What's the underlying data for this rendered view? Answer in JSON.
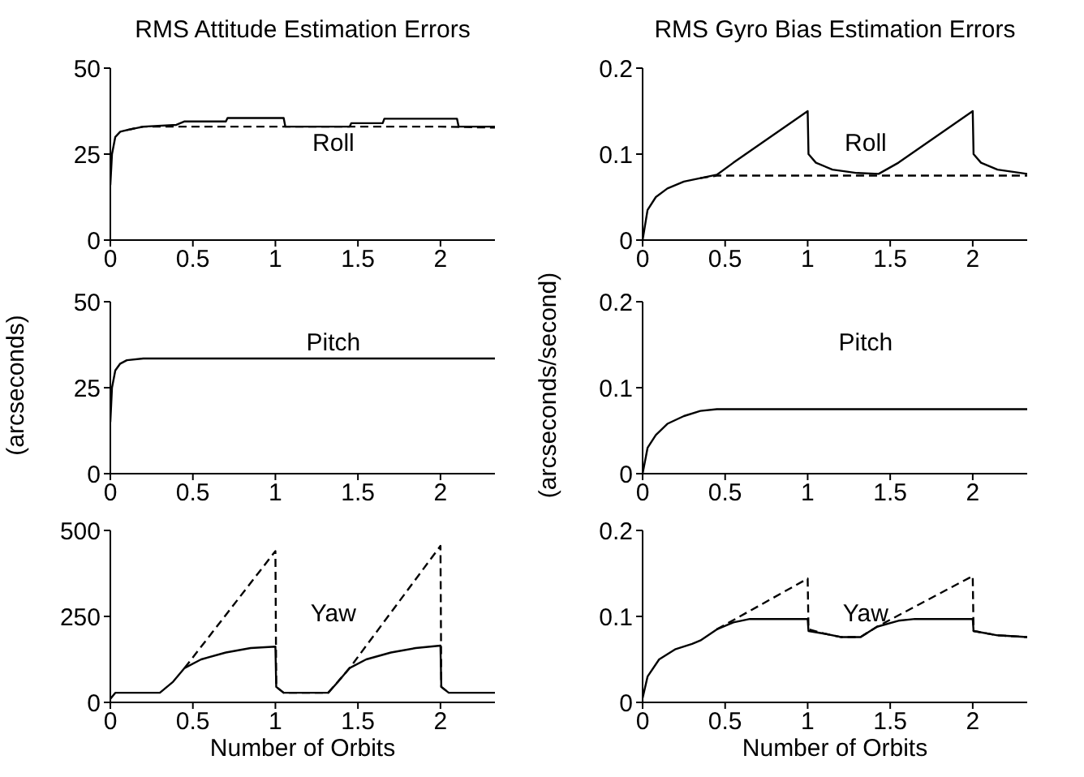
{
  "chart_data": [
    {
      "type": "line",
      "title": "RMS Attitude Estimation Errors",
      "annotations": [
        "Roll"
      ],
      "xlim": [
        0,
        2.33
      ],
      "xticks": [
        0,
        0.5,
        1,
        1.5,
        2
      ],
      "ylim": [
        0,
        50
      ],
      "yticks": [
        0,
        25,
        50
      ],
      "grid": false,
      "legend": false,
      "marker": "none",
      "series": [
        {
          "color": "#000000",
          "line_style": "solid",
          "x": [
            0,
            0.01,
            0.03,
            0.06,
            0.1,
            0.2,
            0.4,
            0.45,
            0.7,
            0.71,
            1.05,
            1.06,
            1.45,
            1.46,
            1.65,
            1.66,
            2.1,
            2.11,
            2.33
          ],
          "values": [
            16,
            25,
            30,
            31.5,
            32,
            33,
            33.5,
            34.5,
            34.5,
            35.5,
            35.5,
            33,
            33,
            34,
            34,
            35.3,
            35.3,
            33,
            33
          ]
        },
        {
          "color": "#000000",
          "line_style": "dashed",
          "x": [
            0.1,
            0.2,
            0.4,
            1,
            1.5,
            2,
            2.33
          ],
          "values": [
            32,
            33,
            33,
            33,
            33,
            33,
            32.7
          ]
        }
      ]
    },
    {
      "type": "line",
      "title": "RMS Gyro Bias Estimation Errors",
      "annotations": [
        "Roll"
      ],
      "xlim": [
        0,
        2.33
      ],
      "xticks": [
        0,
        0.5,
        1,
        1.5,
        2
      ],
      "ylim": [
        0,
        0.2
      ],
      "yticks": [
        0,
        0.1,
        0.2
      ],
      "grid": false,
      "legend": false,
      "marker": "none",
      "series": [
        {
          "color": "#000000",
          "line_style": "solid",
          "x": [
            0,
            0.03,
            0.08,
            0.15,
            0.25,
            0.35,
            0.45,
            0.55,
            1,
            1.005,
            1.05,
            1.15,
            1.3,
            1.43,
            1.55,
            2,
            2.005,
            2.05,
            2.15,
            2.33
          ],
          "values": [
            0,
            0.035,
            0.05,
            0.06,
            0.068,
            0.072,
            0.076,
            0.09,
            0.15,
            0.1,
            0.09,
            0.082,
            0.078,
            0.077,
            0.09,
            0.15,
            0.1,
            0.09,
            0.082,
            0.077
          ]
        },
        {
          "color": "#000000",
          "line_style": "dashed",
          "x": [
            0.35,
            0.45,
            1,
            1.5,
            2,
            2.33
          ],
          "values": [
            0.072,
            0.075,
            0.075,
            0.075,
            0.075,
            0.075
          ]
        }
      ]
    },
    {
      "type": "line",
      "ylabel": "(arcseconds)",
      "annotations": [
        "Pitch"
      ],
      "xlim": [
        0,
        2.33
      ],
      "xticks": [
        0,
        0.5,
        1,
        1.5,
        2
      ],
      "ylim": [
        0,
        50
      ],
      "yticks": [
        0,
        25,
        50
      ],
      "grid": false,
      "legend": false,
      "marker": "none",
      "series": [
        {
          "color": "#000000",
          "line_style": "solid",
          "x": [
            0,
            0.01,
            0.03,
            0.06,
            0.1,
            0.2,
            0.5,
            1,
            1.5,
            2,
            2.33
          ],
          "values": [
            15,
            25,
            30,
            32,
            33,
            33.5,
            33.5,
            33.5,
            33.5,
            33.5,
            33.5
          ]
        }
      ]
    },
    {
      "type": "line",
      "ylabel": "(arcseconds/second)",
      "annotations": [
        "Pitch"
      ],
      "xlim": [
        0,
        2.33
      ],
      "xticks": [
        0,
        0.5,
        1,
        1.5,
        2
      ],
      "ylim": [
        0,
        0.2
      ],
      "yticks": [
        0,
        0.1,
        0.2
      ],
      "grid": false,
      "legend": false,
      "marker": "none",
      "series": [
        {
          "color": "#000000",
          "line_style": "solid",
          "x": [
            0,
            0.03,
            0.08,
            0.15,
            0.25,
            0.35,
            0.45,
            1,
            1.5,
            2,
            2.33
          ],
          "values": [
            0,
            0.03,
            0.045,
            0.058,
            0.067,
            0.073,
            0.075,
            0.075,
            0.075,
            0.075,
            0.075
          ]
        }
      ]
    },
    {
      "type": "line",
      "xlabel": "Number of Orbits",
      "annotations": [
        "Yaw"
      ],
      "xlim": [
        0,
        2.33
      ],
      "xticks": [
        0,
        0.5,
        1,
        1.5,
        2
      ],
      "ylim": [
        0,
        500
      ],
      "yticks": [
        0,
        250,
        500
      ],
      "grid": false,
      "legend": false,
      "marker": "none",
      "series": [
        {
          "color": "#000000",
          "line_style": "solid",
          "x": [
            0,
            0.03,
            0.3,
            0.38,
            0.45,
            0.55,
            0.7,
            0.85,
            1,
            1.005,
            1.05,
            1.32,
            1.38,
            1.45,
            1.55,
            1.7,
            1.85,
            2,
            2.005,
            2.05,
            2.33
          ],
          "values": [
            10,
            28,
            28,
            60,
            100,
            125,
            145,
            158,
            162,
            45,
            28,
            28,
            60,
            100,
            125,
            145,
            158,
            165,
            45,
            28,
            28
          ]
        },
        {
          "color": "#000000",
          "line_style": "dashed",
          "x": [
            0.45,
            1,
            1.005,
            1.05,
            1.32,
            1.45,
            2,
            2.005,
            2.05
          ],
          "values": [
            100,
            440,
            45,
            28,
            28,
            100,
            455,
            45,
            28
          ]
        }
      ]
    },
    {
      "type": "line",
      "xlabel": "Number of Orbits",
      "annotations": [
        "Yaw"
      ],
      "xlim": [
        0,
        2.33
      ],
      "xticks": [
        0,
        0.5,
        1,
        1.5,
        2
      ],
      "ylim": [
        0,
        0.2
      ],
      "yticks": [
        0,
        0.1,
        0.2
      ],
      "grid": false,
      "legend": false,
      "marker": "none",
      "series": [
        {
          "color": "#000000",
          "line_style": "solid",
          "x": [
            0,
            0.03,
            0.1,
            0.2,
            0.3,
            0.35,
            0.45,
            0.55,
            0.65,
            1,
            1.005,
            1.1,
            1.2,
            1.32,
            1.42,
            1.55,
            1.65,
            2,
            2.005,
            2.15,
            2.33
          ],
          "values": [
            0.005,
            0.03,
            0.05,
            0.062,
            0.068,
            0.072,
            0.085,
            0.093,
            0.097,
            0.097,
            0.083,
            0.08,
            0.076,
            0.076,
            0.088,
            0.095,
            0.097,
            0.097,
            0.083,
            0.078,
            0.076
          ]
        },
        {
          "color": "#000000",
          "line_style": "dashed",
          "x": [
            0.45,
            1,
            1.005,
            1.1,
            1.2,
            1.32,
            1.42,
            2,
            2.005,
            2.15,
            2.33
          ],
          "values": [
            0.085,
            0.144,
            0.085,
            0.08,
            0.076,
            0.076,
            0.088,
            0.147,
            0.083,
            0.078,
            0.076
          ]
        }
      ]
    }
  ]
}
